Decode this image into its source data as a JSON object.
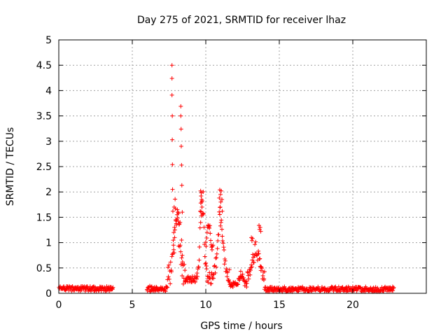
{
  "chart_data": {
    "type": "scatter",
    "title": "Day 275 of 2021, SRMTID for receiver lhaz",
    "xlabel": "GPS time / hours",
    "ylabel": "SRMTID / TECUs",
    "xlim": [
      0,
      25
    ],
    "ylim": [
      0,
      5
    ],
    "x_ticks": [
      "0",
      "5",
      "10",
      "15",
      "20"
    ],
    "y_ticks": [
      "0",
      "0.5",
      "1",
      "1.5",
      "2",
      "2.5",
      "3",
      "3.5",
      "4",
      "4.5",
      "5"
    ],
    "grid": true,
    "legend": "none",
    "marker": "+",
    "colors": {
      "series": "#ff0000",
      "grid": "#a0a0a0",
      "axis": "#000000"
    },
    "series": [
      {
        "name": "SRMTID",
        "points": [
          [
            7.7,
            4.5
          ],
          [
            7.7,
            4.24
          ],
          [
            7.7,
            3.91
          ],
          [
            7.72,
            3.5
          ],
          [
            7.72,
            3.03
          ],
          [
            7.73,
            2.54
          ],
          [
            7.74,
            2.05
          ],
          [
            7.76,
            1.62
          ],
          [
            8.3,
            3.69
          ],
          [
            8.3,
            3.5
          ],
          [
            8.32,
            3.24
          ],
          [
            8.33,
            2.9
          ],
          [
            8.35,
            2.53
          ],
          [
            8.37,
            2.13
          ],
          [
            8.4,
            1.6
          ],
          [
            9.65,
            2.02
          ],
          [
            9.7,
            1.98
          ],
          [
            9.68,
            1.92
          ],
          [
            9.72,
            1.85
          ],
          [
            9.66,
            1.78
          ],
          [
            9.74,
            1.7
          ],
          [
            9.62,
            1.62
          ],
          [
            9.78,
            1.55
          ],
          [
            10.95,
            2.04
          ],
          [
            11.05,
            2.02
          ],
          [
            11.0,
            1.95
          ],
          [
            10.92,
            1.88
          ],
          [
            11.1,
            1.85
          ],
          [
            11.02,
            1.8
          ],
          [
            10.98,
            1.7
          ],
          [
            11.12,
            1.62
          ],
          [
            13.62,
            1.34
          ],
          [
            13.7,
            1.3
          ],
          [
            13.66,
            1.26
          ],
          [
            13.74,
            1.22
          ],
          [
            13.1,
            1.1
          ],
          [
            13.18,
            1.08
          ],
          [
            13.14,
            1.04
          ],
          [
            8.1,
            1.6
          ],
          [
            8.05,
            1.55
          ],
          [
            8.15,
            1.58
          ],
          [
            7.95,
            1.45
          ],
          [
            7.9,
            1.25
          ],
          [
            7.82,
            1.2
          ],
          [
            8.0,
            1.35
          ],
          [
            7.88,
            1.1
          ],
          [
            7.8,
            0.95
          ],
          [
            7.85,
            0.8
          ],
          [
            8.25,
            1.4
          ],
          [
            8.35,
            1.05
          ],
          [
            8.4,
            0.75
          ],
          [
            8.42,
            0.62
          ]
        ],
        "segments": [
          {
            "x": [
              0.0,
              3.7
            ],
            "base": 0.09,
            "noise": 0.05
          },
          {
            "x": [
              6.0,
              7.4
            ],
            "base": 0.09,
            "noise": 0.06
          },
          {
            "x": [
              7.4,
              8.6
            ],
            "base": 0.35,
            "noise": 0.25,
            "peak": [
              8.0,
              1.4,
              0.25
            ]
          },
          {
            "x": [
              8.6,
              9.4
            ],
            "base": 0.28,
            "noise": 0.06
          },
          {
            "x": [
              9.4,
              10.4
            ],
            "base": 0.3,
            "noise": 0.12,
            "peak": [
              9.75,
              1.6,
              0.18
            ]
          },
          {
            "x": [
              10.0,
              10.5
            ],
            "base": 0.9,
            "noise": 0.1,
            "peak": [
              10.2,
              0.4,
              0.15
            ]
          },
          {
            "x": [
              10.4,
              11.6
            ],
            "base": 0.35,
            "noise": 0.12,
            "peak": [
              11.0,
              1.2,
              0.25
            ]
          },
          {
            "x": [
              11.6,
              12.8
            ],
            "base": 0.18,
            "noise": 0.06,
            "peak": [
              12.4,
              0.22,
              0.15
            ]
          },
          {
            "x": [
              12.8,
              14.0
            ],
            "base": 0.3,
            "noise": 0.12,
            "peak": [
              13.4,
              0.55,
              0.3
            ]
          },
          {
            "x": [
              14.0,
              22.8
            ],
            "base": 0.08,
            "noise": 0.05
          }
        ]
      }
    ]
  }
}
